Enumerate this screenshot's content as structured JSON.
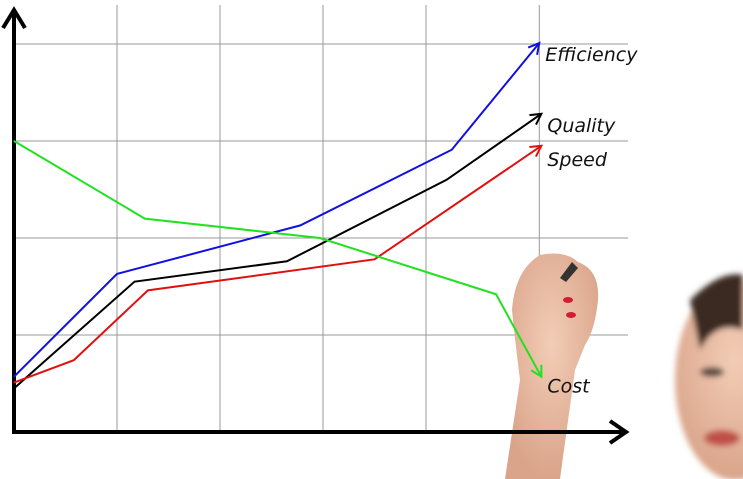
{
  "chart_data": {
    "type": "line",
    "title": "",
    "xlabel": "",
    "ylabel": "",
    "xlim": [
      0,
      6
    ],
    "ylim": [
      0,
      4.4
    ],
    "grid": true,
    "grid_x": [
      1,
      2,
      3,
      4,
      5.1
    ],
    "grid_y": [
      1,
      2,
      3,
      4
    ],
    "legend": "end-of-line labels",
    "series": [
      {
        "name": "Efficiency",
        "color": "#1010e0",
        "x": [
          0,
          1,
          2.78,
          4.25,
          5.1
        ],
        "y": [
          0.57,
          1.63,
          2.13,
          2.91,
          4.01
        ]
      },
      {
        "name": "Quality",
        "color": "#000000",
        "x": [
          0,
          1.17,
          2.65,
          4.2,
          5.12
        ],
        "y": [
          0.45,
          1.55,
          1.76,
          2.6,
          3.28
        ]
      },
      {
        "name": "Speed",
        "color": "#e01010",
        "x": [
          0,
          0.58,
          1.3,
          3.5,
          5.12
        ],
        "y": [
          0.51,
          0.74,
          1.46,
          1.78,
          2.95
        ]
      },
      {
        "name": "Cost",
        "color": "#22e022",
        "x": [
          0,
          1.27,
          2.97,
          4.68,
          5.12
        ],
        "y": [
          3.0,
          2.2,
          2.0,
          1.42,
          0.57
        ]
      }
    ]
  }
}
